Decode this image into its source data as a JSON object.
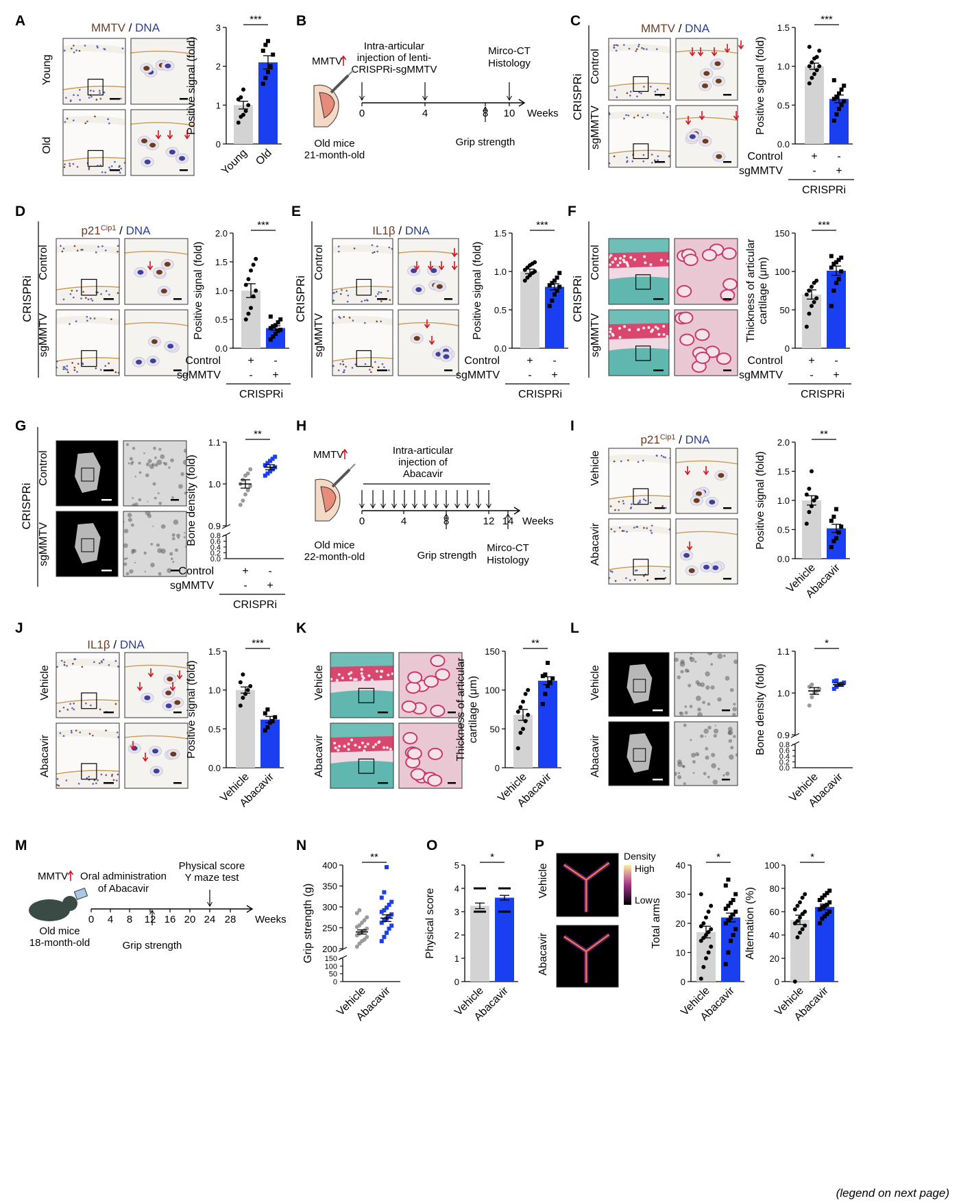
{
  "colors": {
    "grey": "#d3d3d3",
    "blue": "#1a3ff0",
    "dot_grey": "#9a9a9a",
    "brown": "#6b3a24",
    "dna_blue": "#283c9c",
    "red": "#d4141c"
  },
  "legend_note": "(legend on next page)",
  "panels": {
    "A": {
      "letter": "A",
      "stain": "MMTV",
      "dna": "DNA",
      "rows": [
        "Young",
        "Old"
      ]
    },
    "B": {
      "letter": "B",
      "tag": "MMTV",
      "injection": [
        "Intra-articular",
        "injection of lenti-",
        "CRISPRi-sgMMTV"
      ],
      "readout": [
        "Mirco-CT",
        "Histology"
      ],
      "grip": "Grip strength",
      "mice": [
        "Old mice",
        "21-month-old"
      ],
      "ticks": [
        "0",
        "4",
        "8",
        "10"
      ],
      "unit": "Weeks"
    },
    "C": {
      "letter": "C",
      "stain": "MMTV",
      "dna": "DNA",
      "group": "CRISPRi",
      "rows": [
        "Control",
        "sgMMTV"
      ]
    },
    "D": {
      "letter": "D",
      "stain": "p21",
      "sup": "Cip1",
      "dna": "DNA",
      "group": "CRISPRi",
      "rows": [
        "Control",
        "sgMMTV"
      ]
    },
    "E": {
      "letter": "E",
      "stain": "IL1β",
      "dna": "DNA",
      "group": "CRISPRi",
      "rows": [
        "Control",
        "sgMMTV"
      ]
    },
    "F": {
      "letter": "F",
      "group": "CRISPRi",
      "rows": [
        "Control",
        "sgMMTV"
      ]
    },
    "G": {
      "letter": "G",
      "group": "CRISPRi",
      "rows": [
        "Control",
        "sgMMTV"
      ]
    },
    "H": {
      "letter": "H",
      "tag": "MMTV",
      "injection": [
        "Intra-articular",
        "injection of",
        "Abacavir"
      ],
      "readout": [
        "Mirco-CT",
        "Histology"
      ],
      "grip": "Grip strength",
      "mice": [
        "Old mice",
        "22-month-old"
      ],
      "ticks": [
        "0",
        "4",
        "8",
        "12",
        "14"
      ],
      "unit": "Weeks"
    },
    "I": {
      "letter": "I",
      "stain": "p21",
      "sup": "Cip1",
      "dna": "DNA",
      "rows": [
        "Vehicle",
        "Abacavir"
      ]
    },
    "J": {
      "letter": "J",
      "stain": "IL1β",
      "dna": "DNA",
      "rows": [
        "Vehicle",
        "Abacavir"
      ]
    },
    "K": {
      "letter": "K",
      "rows": [
        "Vehicle",
        "Abacavir"
      ]
    },
    "L": {
      "letter": "L",
      "rows": [
        "Vehicle",
        "Abacavir"
      ]
    },
    "M": {
      "letter": "M",
      "tag": "MMTV",
      "treatment": [
        "Oral administration",
        "of Abacavir"
      ],
      "readout": [
        "Physical score",
        "Y maze test"
      ],
      "grip": "Grip strength",
      "mice": [
        "Old mice",
        "18-month-old"
      ],
      "ticks": [
        "0",
        "4",
        "8",
        "12",
        "16",
        "20",
        "24",
        "28"
      ],
      "unit": "Weeks"
    },
    "N": {
      "letter": "N"
    },
    "O": {
      "letter": "O"
    },
    "P": {
      "letter": "P",
      "rows": [
        "Vehicle",
        "Abacavir"
      ],
      "density": {
        "title": "Density",
        "high": "High",
        "low": "Low"
      }
    }
  },
  "chart_data": [
    {
      "id": "A",
      "type": "bar",
      "categories": [
        "Young",
        "Old"
      ],
      "ylabel": "Positive signal (fold)",
      "ylim": [
        0,
        3
      ],
      "yticks": [
        "0",
        "1",
        "2",
        "3"
      ],
      "significance": "***",
      "means": [
        1.0,
        2.1
      ],
      "sem": [
        0.1,
        0.17
      ],
      "points": [
        [
          0.55,
          0.7,
          0.75,
          0.85,
          1.0,
          1.15,
          1.2,
          1.4
        ],
        [
          1.55,
          1.7,
          1.85,
          2.0,
          2.3,
          2.4,
          2.55,
          2.65
        ]
      ]
    },
    {
      "id": "C",
      "type": "bar",
      "categories": [
        "Control",
        "sgMMTV"
      ],
      "ylabel": "Positive signal (fold)",
      "ylim": [
        0,
        1.5
      ],
      "yticks": [
        "0.0",
        "0.5",
        "1.0",
        "1.5"
      ],
      "significance": "***",
      "means": [
        1.0,
        0.58
      ],
      "sem": [
        0.04,
        0.05
      ],
      "rows": [
        {
          "label": "Control",
          "marks": [
            "+",
            "-"
          ]
        },
        {
          "label": "sgMMTV",
          "marks": [
            "-",
            "+"
          ]
        }
      ],
      "group": "CRISPRi",
      "points": [
        [
          0.78,
          0.85,
          0.9,
          0.95,
          1.0,
          1.0,
          1.05,
          1.1,
          1.12,
          1.2,
          1.25
        ],
        [
          0.3,
          0.38,
          0.45,
          0.5,
          0.55,
          0.58,
          0.6,
          0.65,
          0.7,
          0.75,
          0.82
        ]
      ]
    },
    {
      "id": "D",
      "type": "bar",
      "categories": [
        "Control",
        "sgMMTV"
      ],
      "ylabel": "Positive signal (fold)",
      "ylim": [
        0,
        2
      ],
      "yticks": [
        "0.0",
        "0.5",
        "1.0",
        "1.5",
        "2.0"
      ],
      "significance": "***",
      "means": [
        1.0,
        0.35
      ],
      "sem": [
        0.12,
        0.04
      ],
      "rows": [
        {
          "label": "Control",
          "marks": [
            "+",
            "-"
          ]
        },
        {
          "label": "sgMMTV",
          "marks": [
            "-",
            "+"
          ]
        }
      ],
      "group": "CRISPRi",
      "points": [
        [
          0.5,
          0.6,
          0.7,
          0.9,
          1.0,
          1.1,
          1.2,
          1.35,
          1.45,
          1.55
        ],
        [
          0.15,
          0.2,
          0.25,
          0.3,
          0.32,
          0.35,
          0.38,
          0.4,
          0.45,
          0.5,
          0.55
        ]
      ]
    },
    {
      "id": "E",
      "type": "bar",
      "categories": [
        "Control",
        "sgMMTV"
      ],
      "ylabel": "Positive signal (fold)",
      "ylim": [
        0,
        1.5
      ],
      "yticks": [
        "0.0",
        "0.5",
        "1.0",
        "1.5"
      ],
      "significance": "***",
      "means": [
        1.0,
        0.8
      ],
      "sem": [
        0.03,
        0.04
      ],
      "rows": [
        {
          "label": "Control",
          "marks": [
            "+",
            "-"
          ]
        },
        {
          "label": "sgMMTV",
          "marks": [
            "-",
            "+"
          ]
        }
      ],
      "group": "CRISPRi",
      "points": [
        [
          0.88,
          0.92,
          0.95,
          0.98,
          1.0,
          1.02,
          1.05,
          1.08,
          1.1,
          1.12
        ],
        [
          0.55,
          0.62,
          0.7,
          0.75,
          0.8,
          0.82,
          0.85,
          0.88,
          0.92,
          0.98
        ]
      ]
    },
    {
      "id": "F",
      "type": "bar",
      "categories": [
        "Control",
        "sgMMTV"
      ],
      "ylabel": "Thickness of articular cartilage (μm)",
      "ylim": [
        0,
        150
      ],
      "yticks": [
        "0",
        "50",
        "100",
        "150"
      ],
      "significance": "***",
      "means": [
        70,
        101
      ],
      "sem": [
        6,
        6
      ],
      "rows": [
        {
          "label": "Control",
          "marks": [
            "+",
            "-"
          ]
        },
        {
          "label": "sgMMTV",
          "marks": [
            "-",
            "+"
          ]
        }
      ],
      "group": "CRISPRi",
      "points": [
        [
          28,
          45,
          55,
          60,
          65,
          70,
          75,
          80,
          85,
          88
        ],
        [
          55,
          75,
          85,
          90,
          100,
          105,
          110,
          112,
          115,
          118,
          120
        ]
      ]
    },
    {
      "id": "G",
      "type": "scatter",
      "categories": [
        "Control",
        "sgMMTV"
      ],
      "ylabel": "Bone density (fold)",
      "ylim": [
        0.9,
        1.1
      ],
      "yticks": [
        "0.9",
        "1.0",
        "1.1"
      ],
      "lower_yticks": [
        "0.0",
        "0.2",
        "0.4",
        "0.6",
        "0.8"
      ],
      "significance": "**",
      "means": [
        1.0,
        1.04
      ],
      "sem": [
        0.01,
        0.006
      ],
      "rows": [
        {
          "label": "Control",
          "marks": [
            "+",
            "-"
          ]
        },
        {
          "label": "sgMMTV",
          "marks": [
            "-",
            "+"
          ]
        }
      ],
      "group": "CRISPRi",
      "points": [
        [
          0.95,
          0.96,
          0.975,
          0.985,
          0.995,
          1.0,
          1.01,
          1.02,
          1.025,
          1.035
        ],
        [
          1.02,
          1.025,
          1.03,
          1.035,
          1.04,
          1.045,
          1.05,
          1.055,
          1.06,
          1.065
        ]
      ]
    },
    {
      "id": "I",
      "type": "bar",
      "categories": [
        "Vehicle",
        "Abacavir"
      ],
      "ylabel": "Positive signal (fold)",
      "ylim": [
        0,
        2
      ],
      "yticks": [
        "0.0",
        "0.5",
        "1.0",
        "1.5",
        "2.0"
      ],
      "significance": "**",
      "means": [
        1.0,
        0.52
      ],
      "sem": [
        0.08,
        0.07
      ],
      "points": [
        [
          0.6,
          0.8,
          0.9,
          1.0,
          1.05,
          1.1,
          1.2,
          1.5
        ],
        [
          0.2,
          0.3,
          0.35,
          0.45,
          0.55,
          0.65,
          0.72,
          0.85
        ]
      ]
    },
    {
      "id": "J",
      "type": "bar",
      "categories": [
        "Vehicle",
        "Abacavir"
      ],
      "ylabel": "Positive signal (fold)",
      "ylim": [
        0,
        1.5
      ],
      "yticks": [
        "0.0",
        "0.5",
        "1.0",
        "1.5"
      ],
      "significance": "***",
      "means": [
        1.0,
        0.62
      ],
      "sem": [
        0.04,
        0.04
      ],
      "points": [
        [
          0.8,
          0.9,
          0.95,
          1.0,
          1.05,
          1.1,
          1.2
        ],
        [
          0.48,
          0.52,
          0.58,
          0.6,
          0.65,
          0.7,
          0.75
        ]
      ]
    },
    {
      "id": "K",
      "type": "bar",
      "categories": [
        "Vehicle",
        "Abacavir"
      ],
      "ylabel": "Thickness of articular cartilage (μm)",
      "ylim": [
        0,
        150
      ],
      "yticks": [
        "0",
        "50",
        "100",
        "150"
      ],
      "significance": "**",
      "means": [
        68,
        112
      ],
      "sem": [
        7,
        5
      ],
      "points": [
        [
          25,
          45,
          50,
          60,
          68,
          72,
          78,
          85,
          95,
          100
        ],
        [
          82,
          95,
          105,
          110,
          115,
          118,
          120,
          135
        ]
      ]
    },
    {
      "id": "L",
      "type": "scatter",
      "categories": [
        "Vehicle",
        "Abacavir"
      ],
      "ylabel": "Bone density (fold)",
      "ylim": [
        0.9,
        1.1
      ],
      "yticks": [
        "0.9",
        "1.0",
        "1.1"
      ],
      "lower_yticks": [
        "0.0",
        "0.2",
        "0.4",
        "0.6",
        "0.8"
      ],
      "significance": "*",
      "means": [
        1.005,
        1.02
      ],
      "sem": [
        0.008,
        0.004
      ],
      "points": [
        [
          0.97,
          0.99,
          1.0,
          1.005,
          1.01,
          1.015,
          1.02
        ],
        [
          1.01,
          1.015,
          1.02,
          1.022,
          1.025,
          1.028,
          1.03
        ]
      ]
    },
    {
      "id": "N",
      "type": "scatter",
      "categories": [
        "Vehicle",
        "Abacavir"
      ],
      "ylabel": "Grip strength (g)",
      "ylim": [
        200,
        400
      ],
      "yticks": [
        "200",
        "250",
        "300",
        "350",
        "400"
      ],
      "lower_yticks": [
        "0",
        "50",
        "100",
        "150"
      ],
      "significance": "**",
      "means": [
        240,
        273
      ],
      "sem": [
        5,
        8
      ],
      "points": [
        [
          205,
          212,
          218,
          222,
          228,
          232,
          236,
          240,
          244,
          248,
          252,
          256,
          262,
          268,
          275,
          285,
          292
        ],
        [
          218,
          228,
          238,
          248,
          255,
          262,
          268,
          272,
          278,
          282,
          288,
          292,
          298,
          305,
          312,
          322,
          335,
          395
        ]
      ]
    },
    {
      "id": "O",
      "type": "bar",
      "categories": [
        "Vehicle",
        "Abacavir"
      ],
      "ylabel": "Physical score",
      "ylim": [
        0,
        5
      ],
      "yticks": [
        "0",
        "1",
        "2",
        "3",
        "4",
        "5"
      ],
      "significance": "*",
      "means": [
        3.25,
        3.6
      ],
      "sem": [
        0.12,
        0.1
      ],
      "points": [
        [
          3,
          4
        ],
        [
          3,
          4
        ]
      ]
    },
    {
      "id": "P1",
      "type": "bar",
      "categories": [
        "Vehicle",
        "Abacavir"
      ],
      "ylabel": "Total arms",
      "ylim": [
        0,
        40
      ],
      "yticks": [
        "0",
        "10",
        "20",
        "30",
        "40"
      ],
      "significance": "*",
      "means": [
        17,
        22
      ],
      "sem": [
        2,
        1.5
      ],
      "points": [
        [
          1,
          5,
          8,
          10,
          12,
          14,
          15,
          16,
          17,
          18,
          19,
          20,
          22,
          24,
          26,
          30
        ],
        [
          6,
          10,
          14,
          16,
          18,
          20,
          21,
          22,
          23,
          24,
          25,
          26,
          27,
          28,
          30,
          33,
          35
        ]
      ]
    },
    {
      "id": "P2",
      "type": "bar",
      "categories": [
        "Vehicle",
        "Abacavir"
      ],
      "ylabel": "Alternation (%)",
      "ylim": [
        0,
        100
      ],
      "yticks": [
        "0",
        "20",
        "40",
        "60",
        "80",
        "100"
      ],
      "significance": "*",
      "means": [
        53,
        64
      ],
      "sem": [
        4,
        2.5
      ],
      "points": [
        [
          0,
          38,
          42,
          45,
          48,
          50,
          52,
          55,
          58,
          60,
          62,
          65,
          68,
          72,
          75
        ],
        [
          50,
          54,
          56,
          58,
          60,
          62,
          64,
          65,
          66,
          68,
          70,
          72,
          74,
          76,
          78
        ]
      ]
    }
  ]
}
